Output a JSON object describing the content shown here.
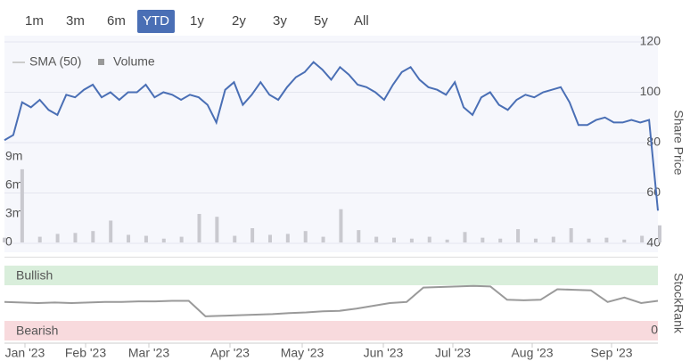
{
  "range_buttons": [
    "1m",
    "3m",
    "6m",
    "YTD",
    "1y",
    "2y",
    "3y",
    "5y",
    "All"
  ],
  "selected_range": "YTD",
  "chart_data": [
    {
      "type": "line",
      "y_label": "Share Price",
      "legend": [
        {
          "name": "SMA (50)",
          "color": "#cccccc"
        },
        {
          "name": "Volume",
          "color": "#999999"
        }
      ],
      "xticks": [
        "Jan '23",
        "Feb '23",
        "Mar '23",
        "Apr '23",
        "May '23",
        "Jun '23",
        "Jul '23",
        "Aug '23",
        "Sep '23"
      ],
      "color": "#4a6fb5",
      "values": [
        81,
        83,
        96,
        94,
        97,
        93,
        91,
        99,
        98,
        101,
        103,
        98,
        100,
        97,
        100,
        100,
        103,
        98,
        100,
        99,
        97,
        99,
        98,
        95,
        88,
        101,
        104,
        95,
        99,
        104,
        99,
        97,
        102,
        106,
        108,
        112,
        109,
        105,
        110,
        107,
        103,
        102,
        100,
        97,
        103,
        108,
        110,
        105,
        102,
        101,
        99,
        104,
        94,
        91,
        98,
        100,
        95,
        93,
        97,
        99,
        98,
        100,
        101,
        102,
        96,
        87,
        87,
        89,
        90,
        88,
        88,
        89,
        88,
        89,
        53
      ],
      "ylim": [
        40,
        120
      ],
      "yticks": [
        40,
        60,
        80,
        100,
        120
      ],
      "volume": {
        "color": "#c9c9cf",
        "values": [
          500000,
          7700000,
          600000,
          900000,
          1000000,
          1200000,
          2300000,
          800000,
          700000,
          400000,
          600000,
          3000000,
          2700000,
          700000,
          1500000,
          800000,
          900000,
          1200000,
          600000,
          3500000,
          1300000,
          600000,
          500000,
          400000,
          600000,
          300000,
          1100000,
          500000,
          400000,
          1400000,
          400000,
          600000,
          1500000,
          400000,
          500000,
          300000,
          700000,
          1800000
        ],
        "ylim": [
          0,
          9000000
        ],
        "yticks": [
          0,
          {
            "value": 3000000,
            "label": "3m"
          },
          {
            "value": 6000000,
            "label": "6m"
          },
          {
            "value": 9000000,
            "label": "9m"
          }
        ]
      }
    },
    {
      "type": "line",
      "y_label": "StockRank",
      "bands": [
        "Bullish",
        "Bearish"
      ],
      "color": "#9a9a9a",
      "values": [
        52,
        51,
        50,
        51,
        50,
        51,
        52,
        52,
        53,
        53,
        54,
        54,
        26,
        27,
        28,
        29,
        30,
        32,
        33,
        35,
        36,
        40,
        45,
        50,
        52,
        78,
        79,
        80,
        81,
        80,
        56,
        55,
        56,
        75,
        74,
        73,
        52,
        60,
        50,
        54
      ],
      "ylim": [
        0,
        100
      ],
      "yticks": [
        0
      ]
    }
  ]
}
